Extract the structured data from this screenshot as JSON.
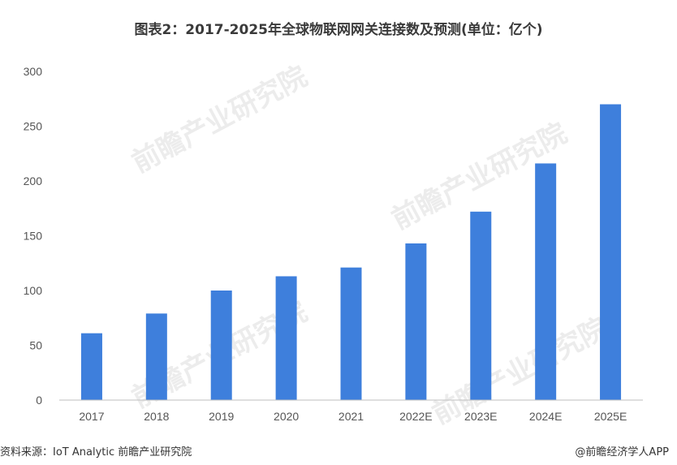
{
  "title": "图表2：2017-2025年全球物联网网关连接数及预测(单位：亿个)",
  "source": "资料来源：IoT Analytic 前瞻产业研究院",
  "credit": "@前瞻经济学人APP",
  "watermark": "前瞻产业研究院",
  "colors": {
    "bar": "#3e7fdc",
    "axis": "#bfbfbf"
  },
  "chart_data": {
    "type": "bar",
    "title": "图表2：2017-2025年全球物联网网关连接数及预测(单位：亿个)",
    "categories": [
      "2017",
      "2018",
      "2019",
      "2020",
      "2021",
      "2022E",
      "2023E",
      "2024E",
      "2025E"
    ],
    "values": [
      61,
      79,
      100,
      113,
      121,
      143,
      172,
      216,
      270
    ],
    "ylim": [
      0,
      300
    ],
    "yticks": [
      0,
      50,
      100,
      150,
      200,
      250,
      300
    ],
    "grid": false,
    "legend": "none"
  }
}
